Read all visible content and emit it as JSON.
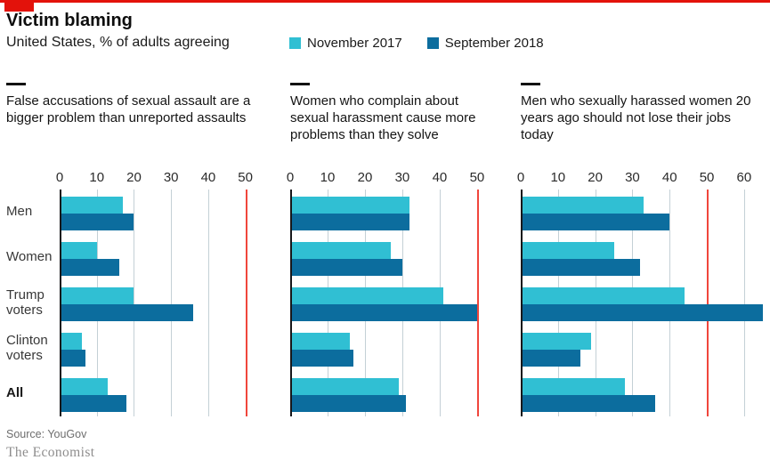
{
  "header": {
    "title": "Victim blaming",
    "subtitle": "United States, % of adults agreeing",
    "legend": [
      {
        "label": "November 2017",
        "color": "#30bfd3"
      },
      {
        "label": "September 2018",
        "color": "#0c6d9e"
      }
    ]
  },
  "row_labels": [
    {
      "label": "Men",
      "bold": false
    },
    {
      "label": "Women",
      "bold": false
    },
    {
      "label": "Trump voters",
      "bold": false
    },
    {
      "label": "Clinton voters",
      "bold": false
    },
    {
      "label": "All",
      "bold": true
    }
  ],
  "chart_data": [
    {
      "type": "bar",
      "title": "False accusations of sexual assault are a bigger problem than unreported assaults",
      "categories": [
        "Men",
        "Women",
        "Trump voters",
        "Clinton voters",
        "All"
      ],
      "series": [
        {
          "name": "November 2017",
          "color": "#30bfd3",
          "values": [
            17,
            10,
            20,
            6,
            13
          ]
        },
        {
          "name": "September 2018",
          "color": "#0c6d9e",
          "values": [
            20,
            16,
            36,
            7,
            18
          ]
        }
      ],
      "ticks": [
        0,
        10,
        20,
        30,
        40,
        50
      ],
      "red_reference_line": 50,
      "xlim": [
        0,
        53.2
      ],
      "grid": "vertical",
      "legend_position": "top"
    },
    {
      "type": "bar",
      "title": "Women who complain about sexual harassment cause more problems than they solve",
      "categories": [
        "Men",
        "Women",
        "Trump voters",
        "Clinton voters",
        "All"
      ],
      "series": [
        {
          "name": "November 2017",
          "color": "#30bfd3",
          "values": [
            32,
            27,
            41,
            16,
            29
          ]
        },
        {
          "name": "September 2018",
          "color": "#0c6d9e",
          "values": [
            32,
            30,
            50,
            17,
            31
          ]
        }
      ],
      "ticks": [
        0,
        10,
        20,
        30,
        40,
        50
      ],
      "red_reference_line": 50,
      "xlim": [
        0,
        55.5
      ],
      "grid": "vertical",
      "legend_position": "top"
    },
    {
      "type": "bar",
      "title": "Men who sexually harassed women 20 years ago should not lose their jobs today",
      "categories": [
        "Men",
        "Women",
        "Trump voters",
        "Clinton voters",
        "All"
      ],
      "series": [
        {
          "name": "November 2017",
          "color": "#30bfd3",
          "values": [
            33,
            25,
            44,
            19,
            28
          ]
        },
        {
          "name": "September 2018",
          "color": "#0c6d9e",
          "values": [
            40,
            32,
            65,
            16,
            36
          ]
        }
      ],
      "ticks": [
        0,
        10,
        20,
        30,
        40,
        50,
        60
      ],
      "red_reference_line": 50,
      "xlim": [
        0,
        65.3
      ],
      "grid": "vertical",
      "legend_position": "top"
    }
  ],
  "footer": {
    "source": "Source: YouGov",
    "brand": "The Economist"
  }
}
